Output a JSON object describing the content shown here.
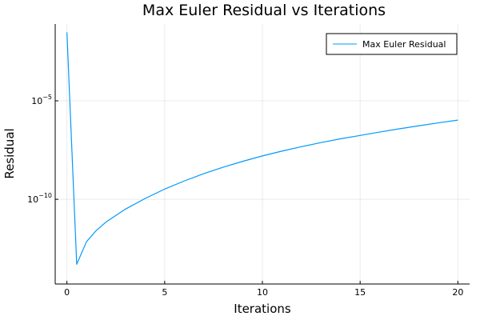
{
  "chart_data": {
    "type": "line",
    "title": "Max Euler Residual vs Iterations",
    "xlabel": "Iterations",
    "ylabel": "Residual",
    "xlim": [
      -0.6,
      20.6
    ],
    "ylim_log10": [
      -14.3,
      -1.1
    ],
    "y_scale": "log",
    "x_ticks": [
      0,
      5,
      10,
      15,
      20
    ],
    "x_tick_labels": [
      "0",
      "5",
      "10",
      "15",
      "20"
    ],
    "y_ticks": [
      1e-05,
      1e-10
    ],
    "y_tick_labels": [
      {
        "base": "10",
        "exp": "−5"
      },
      {
        "base": "10",
        "exp": "−10"
      }
    ],
    "grid": true,
    "legend_position": "top-right",
    "series": [
      {
        "name": "Max Euler Residual",
        "color": "#009AFA",
        "x": [
          0,
          0.5,
          1,
          1.5,
          2,
          3,
          4,
          5,
          6,
          7,
          8,
          9,
          10,
          11,
          12,
          13,
          14,
          15,
          16,
          17,
          18,
          19,
          20
        ],
        "y": [
          0.03,
          5e-14,
          7e-13,
          2.6e-12,
          7e-12,
          3.2e-11,
          1.1e-10,
          3.3e-10,
          8.5e-10,
          2e-09,
          4.3e-09,
          8.5e-09,
          1.6e-08,
          2.8e-08,
          4.7e-08,
          7.6e-08,
          1.18e-07,
          1.75e-07,
          2.6e-07,
          3.8e-07,
          5.4e-07,
          7.6e-07,
          1.05e-06
        ]
      }
    ]
  }
}
